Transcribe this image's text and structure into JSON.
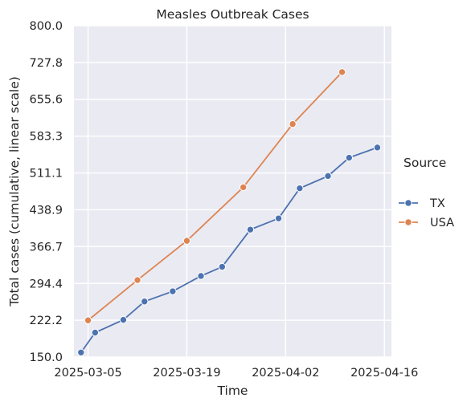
{
  "chart_data": {
    "type": "line",
    "title": "Measles Outbreak Cases",
    "xlabel": "Time",
    "ylabel": "Total cases (cumulative, linear scale)",
    "xlim": [
      "2025-03-03",
      "2025-04-17"
    ],
    "ylim": [
      150,
      800
    ],
    "x_ticks": [
      "2025-03-05",
      "2025-03-19",
      "2025-04-02",
      "2025-04-16"
    ],
    "y_ticks": [
      "150.0",
      "222.2",
      "294.4",
      "366.7",
      "438.9",
      "511.1",
      "583.3",
      "655.6",
      "727.8",
      "800.0"
    ],
    "grid": true,
    "legend_title": "Source",
    "legend_position": "right",
    "series": [
      {
        "name": "TX",
        "color": "#4c72b0",
        "x": [
          "2025-03-04",
          "2025-03-06",
          "2025-03-10",
          "2025-03-13",
          "2025-03-17",
          "2025-03-21",
          "2025-03-24",
          "2025-03-28",
          "2025-04-01",
          "2025-04-04",
          "2025-04-08",
          "2025-04-11",
          "2025-04-15"
        ],
        "values": [
          159,
          198,
          223,
          259,
          279,
          309,
          327,
          400,
          422,
          481,
          505,
          541,
          561
        ]
      },
      {
        "name": "USA",
        "color": "#dd8452",
        "x": [
          "2025-03-05",
          "2025-03-12",
          "2025-03-19",
          "2025-03-27",
          "2025-04-03",
          "2025-04-10"
        ],
        "values": [
          222,
          301,
          378,
          483,
          607,
          709
        ]
      }
    ]
  }
}
